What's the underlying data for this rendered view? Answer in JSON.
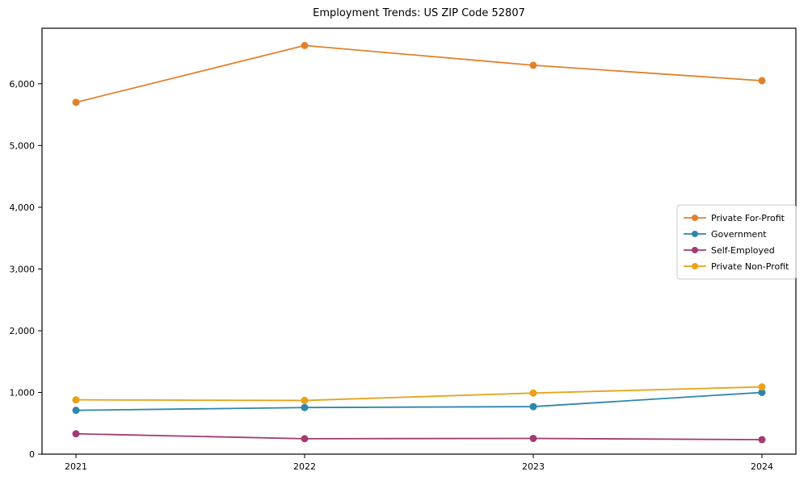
{
  "chart_data": {
    "type": "line",
    "title": "Employment Trends: US ZIP Code 52807",
    "xlabel": "",
    "ylabel": "",
    "categories": [
      "2021",
      "2022",
      "2023",
      "2024"
    ],
    "series": [
      {
        "name": "Private For-Profit",
        "color": "#e1812c",
        "values": [
          5700,
          6620,
          6300,
          6050
        ]
      },
      {
        "name": "Government",
        "color": "#2e86ab",
        "values": [
          710,
          755,
          770,
          1000
        ]
      },
      {
        "name": "Self-Employed",
        "color": "#a23b72",
        "values": [
          330,
          250,
          255,
          235
        ]
      },
      {
        "name": "Private Non-Profit",
        "color": "#e8a118",
        "values": [
          880,
          870,
          990,
          1090
        ]
      }
    ],
    "ylim": [
      0,
      6900
    ],
    "ytick_step": 1000,
    "ytick_labels": [
      "0",
      "1,000",
      "2,000",
      "3,000",
      "4,000",
      "5,000",
      "6,000"
    ],
    "grid": false,
    "legend_position": "right-middle",
    "axis_color": "#000000",
    "legend_border_color": "#cccccc",
    "background_color": "#ffffff"
  }
}
